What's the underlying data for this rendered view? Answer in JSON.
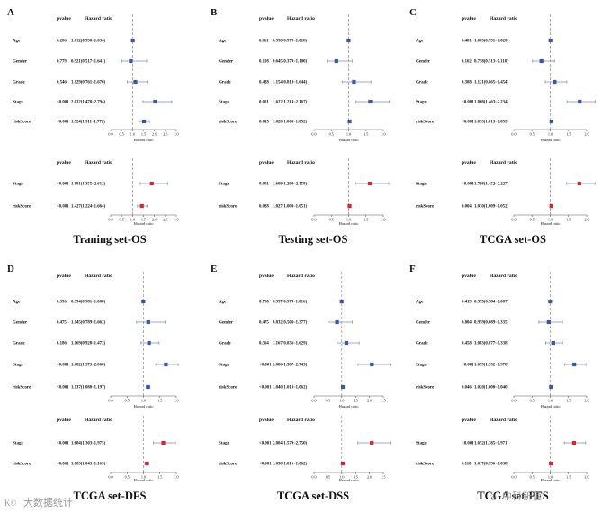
{
  "colors": {
    "upper_marker": "#3d57a3",
    "lower_marker": "#d8262b",
    "ci_line": "#7d8fc6",
    "ref_line": "#8a8a8a",
    "axis": "#555555",
    "text": "#111111",
    "watermark": "#9a9a9a"
  },
  "header": {
    "pvalue": "pvalue",
    "hazard": "Hazard ratio"
  },
  "axis_title": "Hazard ratio",
  "watermarks": {
    "left": "大数据统计",
    "right": "中科新信"
  },
  "chart_data": [
    {
      "type": "forest",
      "letter": "A",
      "caption": "Traning set-OS",
      "xlim": [
        0,
        3.0
      ],
      "ticks": [
        "0.0",
        "0.5",
        "1.0",
        "1.5",
        "2.0",
        "2.5",
        "3.0"
      ],
      "ref": 1,
      "univariate": [
        {
          "label": "Age",
          "p": "0.286",
          "text": "1.012(0.990~1.034)",
          "hr": 1.012,
          "lo": 0.99,
          "hi": 1.034
        },
        {
          "label": "Gender",
          "p": "0.779",
          "text": "0.921(0.517~1.641)",
          "hr": 0.921,
          "lo": 0.517,
          "hi": 1.641
        },
        {
          "label": "Grade",
          "p": "0.546",
          "text": "1.129(0.761~1.676)",
          "hr": 1.129,
          "lo": 0.761,
          "hi": 1.676
        },
        {
          "label": "Stage",
          "p": "<0.001",
          "text": "2.032(1.478~2.794)",
          "hr": 2.032,
          "lo": 1.478,
          "hi": 2.794
        },
        {
          "label": "riskScore",
          "p": "<0.001",
          "text": "1.524(1.311~1.772)",
          "hr": 1.524,
          "lo": 1.311,
          "hi": 1.772
        }
      ],
      "multivariate": [
        {
          "label": "Stage",
          "p": "<0.001",
          "text": "1.881(1.355~2.612)",
          "hr": 1.881,
          "lo": 1.355,
          "hi": 2.612
        },
        {
          "label": "riskScore",
          "p": "<0.001",
          "text": "1.427(1.224~1.664)",
          "hr": 1.427,
          "lo": 1.224,
          "hi": 1.664
        }
      ]
    },
    {
      "type": "forest",
      "letter": "B",
      "caption": "Testing set-OS",
      "xlim": [
        0,
        2.0
      ],
      "ticks": [
        "0.0",
        "0.5",
        "1.0",
        "1.5",
        "2.0"
      ],
      "ref": 1,
      "univariate": [
        {
          "label": "Age",
          "p": "0.861",
          "text": "0.998(0.978~1.018)",
          "hr": 0.998,
          "lo": 0.978,
          "hi": 1.018
        },
        {
          "label": "Gender",
          "p": "0.108",
          "text": "0.645(0.379~1.100)",
          "hr": 0.645,
          "lo": 0.379,
          "hi": 1.1
        },
        {
          "label": "Grade",
          "p": "0.428",
          "text": "1.154(0.810~1.644)",
          "hr": 1.154,
          "lo": 0.81,
          "hi": 1.644
        },
        {
          "label": "Stage",
          "p": "0.001",
          "text": "1.622(1.214~2.167)",
          "hr": 1.622,
          "lo": 1.214,
          "hi": 2.167
        },
        {
          "label": "riskScore",
          "p": "0.015",
          "text": "1.028(1.005~1.052)",
          "hr": 1.028,
          "lo": 1.005,
          "hi": 1.052
        }
      ],
      "multivariate": [
        {
          "label": "Stage",
          "p": "0.001",
          "text": "1.609(1.200~2.158)",
          "hr": 1.609,
          "lo": 1.2,
          "hi": 2.158
        },
        {
          "label": "riskScore",
          "p": "0.028",
          "text": "1.027(1.003~1.051)",
          "hr": 1.027,
          "lo": 1.003,
          "hi": 1.051
        }
      ]
    },
    {
      "type": "forest",
      "letter": "C",
      "caption": "TCGA set-OS",
      "xlim": [
        0,
        2.0
      ],
      "ticks": [
        "0.0",
        "0.5",
        "1.0",
        "1.5",
        "2.0"
      ],
      "ref": 1,
      "univariate": [
        {
          "label": "Age",
          "p": "0.481",
          "text": "1.005(0.991~1.020)",
          "hr": 1.005,
          "lo": 0.991,
          "hi": 1.02
        },
        {
          "label": "Gender",
          "p": "0.162",
          "text": "0.758(0.513~1.118)",
          "hr": 0.758,
          "lo": 0.513,
          "hi": 1.118
        },
        {
          "label": "Grade",
          "p": "0.388",
          "text": "1.121(0.865~1.454)",
          "hr": 1.121,
          "lo": 0.865,
          "hi": 1.454
        },
        {
          "label": "Stage",
          "p": "<0.001",
          "text": "1.808(1.463~2.234)",
          "hr": 1.808,
          "lo": 1.463,
          "hi": 2.234
        },
        {
          "label": "riskScore",
          "p": "<0.001",
          "text": "1.033(1.013~1.053)",
          "hr": 1.033,
          "lo": 1.013,
          "hi": 1.053
        }
      ],
      "multivariate": [
        {
          "label": "Stage",
          "p": "<0.001",
          "text": "1.798(1.452~2.227)",
          "hr": 1.798,
          "lo": 1.452,
          "hi": 2.227
        },
        {
          "label": "riskScore",
          "p": "0.004",
          "text": "1.030(1.009~1.052)",
          "hr": 1.03,
          "lo": 1.009,
          "hi": 1.052
        }
      ]
    },
    {
      "type": "forest",
      "letter": "D",
      "caption": "TCGA set-DFS",
      "xlim": [
        0,
        2.0
      ],
      "ticks": [
        "0.0",
        "0.5",
        "1.0",
        "1.5",
        "2.0"
      ],
      "ref": 1,
      "univariate": [
        {
          "label": "Age",
          "p": "0.396",
          "text": "0.994(0.981~1.008)",
          "hr": 0.994,
          "lo": 0.981,
          "hi": 1.008
        },
        {
          "label": "Gender",
          "p": "0.475",
          "text": "1.145(0.789~1.662)",
          "hr": 1.145,
          "lo": 0.789,
          "hi": 1.662
        },
        {
          "label": "Grade",
          "p": "0.186",
          "text": "1.169(0.928~1.472)",
          "hr": 1.169,
          "lo": 0.928,
          "hi": 1.472
        },
        {
          "label": "Stage",
          "p": "<0.001",
          "text": "1.682(1.373~2.060)",
          "hr": 1.682,
          "lo": 1.373,
          "hi": 2.06
        },
        {
          "label": "riskScore",
          "p": "<0.001",
          "text": "1.137(1.080~1.197)",
          "hr": 1.137,
          "lo": 1.08,
          "hi": 1.197
        }
      ],
      "multivariate": [
        {
          "label": "Stage",
          "p": "<0.001",
          "text": "1.604(1.303~1.975)",
          "hr": 1.604,
          "lo": 1.303,
          "hi": 1.975
        },
        {
          "label": "riskScore",
          "p": "<0.001",
          "text": "1.103(1.043~1.165)",
          "hr": 1.103,
          "lo": 1.043,
          "hi": 1.165
        }
      ]
    },
    {
      "type": "forest",
      "letter": "E",
      "caption": "TCGA set-DSS",
      "xlim": [
        0,
        2.5
      ],
      "ticks": [
        "0.0",
        "0.5",
        "1.0",
        "1.5",
        "2.0",
        "2.5"
      ],
      "ref": 1,
      "univariate": [
        {
          "label": "Age",
          "p": "0.780",
          "text": "0.997(0.979~1.016)",
          "hr": 0.997,
          "lo": 0.979,
          "hi": 1.016
        },
        {
          "label": "Gender",
          "p": "0.475",
          "text": "0.832(0.503~1.377)",
          "hr": 0.832,
          "lo": 0.503,
          "hi": 1.377
        },
        {
          "label": "Grade",
          "p": "0.364",
          "text": "1.167(0.836~1.629)",
          "hr": 1.167,
          "lo": 0.836,
          "hi": 1.629
        },
        {
          "label": "Stage",
          "p": "<0.001",
          "text": "2.086(1.587~2.743)",
          "hr": 2.086,
          "lo": 1.587,
          "hi": 2.743
        },
        {
          "label": "riskScore",
          "p": "<0.001",
          "text": "1.040(1.018~1.062)",
          "hr": 1.04,
          "lo": 1.018,
          "hi": 1.062
        }
      ],
      "multivariate": [
        {
          "label": "Stage",
          "p": "<0.001",
          "text": "2.084(1.579~2.750)",
          "hr": 2.084,
          "lo": 1.579,
          "hi": 2.75
        },
        {
          "label": "riskScore",
          "p": "<0.001",
          "text": "1.038(1.016~1.062)",
          "hr": 1.038,
          "lo": 1.016,
          "hi": 1.062
        }
      ]
    },
    {
      "type": "forest",
      "letter": "F",
      "caption": "TCGA set-PFS",
      "xlim": [
        0,
        2.0
      ],
      "ticks": [
        "0.0",
        "0.5",
        "1.0",
        "1.5",
        "2.0"
      ],
      "ref": 1,
      "univariate": [
        {
          "label": "Age",
          "p": "0.419",
          "text": "0.995(0.984~1.007)",
          "hr": 0.995,
          "lo": 0.984,
          "hi": 1.007
        },
        {
          "label": "Gender",
          "p": "0.804",
          "text": "0.959(0.689~1.335)",
          "hr": 0.959,
          "lo": 0.689,
          "hi": 1.335
        },
        {
          "label": "Grade",
          "p": "0.458",
          "text": "1.083(0.877~1.338)",
          "hr": 1.083,
          "lo": 0.877,
          "hi": 1.338
        },
        {
          "label": "Stage",
          "p": "<0.001",
          "text": "1.659(1.392~1.978)",
          "hr": 1.659,
          "lo": 1.392,
          "hi": 1.978
        },
        {
          "label": "riskScore",
          "p": "0.046",
          "text": "1.020(1.000~1.040)",
          "hr": 1.02,
          "lo": 1.0,
          "hi": 1.04
        }
      ],
      "multivariate": [
        {
          "label": "Stage",
          "p": "<0.001",
          "text": "1.652(1.385~1.971)",
          "hr": 1.652,
          "lo": 1.385,
          "hi": 1.971
        },
        {
          "label": "riskScore",
          "p": "0.110",
          "text": "1.017(0.996~1.038)",
          "hr": 1.017,
          "lo": 0.996,
          "hi": 1.038
        }
      ]
    }
  ]
}
